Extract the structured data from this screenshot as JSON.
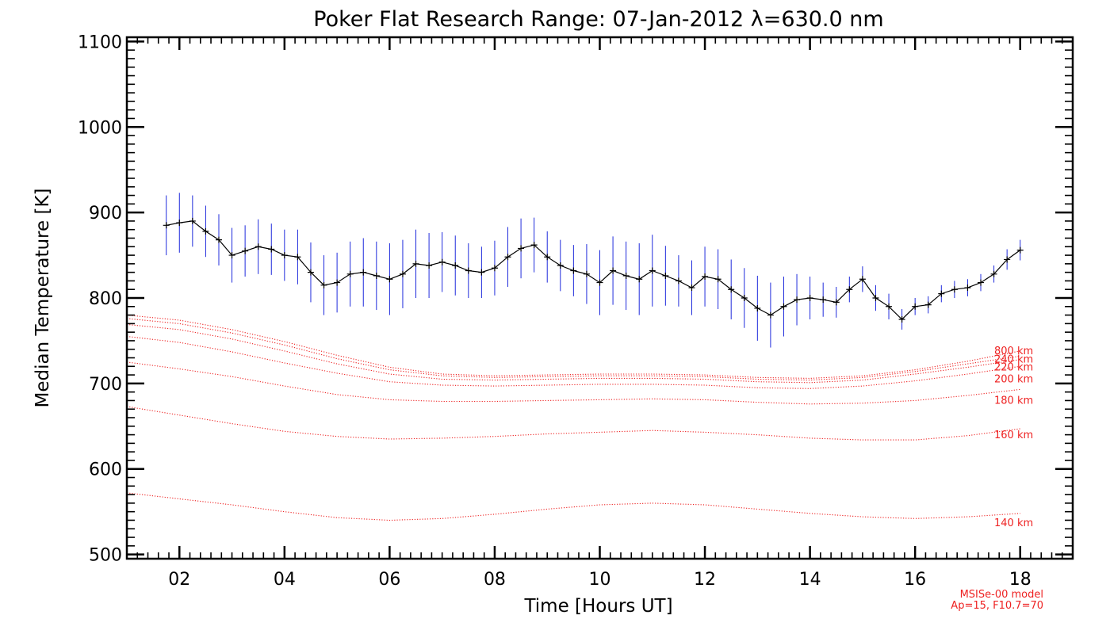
{
  "chart_data": {
    "type": "line",
    "title": "Poker Flat Research Range: 07-Jan-2012 λ=630.0 nm",
    "xlabel": "Time [Hours UT]",
    "ylabel": "Median Temperature [K]",
    "xlim": [
      1.0,
      19.0
    ],
    "ylim": [
      495,
      1105
    ],
    "x_ticks": [
      2,
      4,
      6,
      8,
      10,
      12,
      14,
      16,
      18
    ],
    "x_tick_labels": [
      "02",
      "04",
      "06",
      "08",
      "10",
      "12",
      "14",
      "16",
      "18"
    ],
    "y_ticks": [
      500,
      600,
      700,
      800,
      900,
      1000,
      1100
    ],
    "y_tick_labels": [
      "500",
      "600",
      "700",
      "800",
      "900",
      "1000",
      "1100"
    ],
    "colors": {
      "measurement_line": "#000000",
      "error_bars": "#1f2bdc",
      "model": "#ee2222"
    },
    "measurement": {
      "x": [
        1.75,
        2.0,
        2.25,
        2.5,
        2.75,
        3.0,
        3.25,
        3.5,
        3.75,
        4.0,
        4.25,
        4.5,
        4.75,
        5.0,
        5.25,
        5.5,
        5.75,
        6.0,
        6.25,
        6.5,
        6.75,
        7.0,
        7.25,
        7.5,
        7.75,
        8.0,
        8.25,
        8.5,
        8.75,
        9.0,
        9.25,
        9.5,
        9.75,
        10.0,
        10.25,
        10.5,
        10.75,
        11.0,
        11.25,
        11.5,
        11.75,
        12.0,
        12.25,
        12.5,
        12.75,
        13.0,
        13.25,
        13.5,
        13.75,
        14.0,
        14.25,
        14.5,
        14.75,
        15.0,
        15.25,
        15.5,
        15.75,
        16.0,
        16.25,
        16.5,
        16.75,
        17.0,
        17.25,
        17.5,
        17.75,
        18.0
      ],
      "y": [
        885,
        888,
        890,
        878,
        868,
        850,
        855,
        860,
        857,
        850,
        848,
        830,
        815,
        818,
        828,
        830,
        826,
        822,
        828,
        840,
        838,
        842,
        838,
        832,
        830,
        835,
        848,
        858,
        862,
        848,
        838,
        832,
        828,
        818,
        832,
        826,
        822,
        832,
        826,
        820,
        812,
        825,
        822,
        810,
        800,
        788,
        780,
        790,
        798,
        800,
        798,
        795,
        810,
        822,
        800,
        790,
        775,
        790,
        792,
        805,
        810,
        812,
        818,
        828,
        845,
        856
      ],
      "err": [
        35,
        35,
        30,
        30,
        30,
        32,
        30,
        32,
        30,
        30,
        32,
        35,
        35,
        35,
        38,
        40,
        40,
        42,
        40,
        40,
        38,
        35,
        35,
        32,
        30,
        32,
        35,
        35,
        32,
        30,
        30,
        30,
        35,
        38,
        40,
        40,
        42,
        42,
        35,
        30,
        32,
        35,
        35,
        35,
        35,
        38,
        38,
        35,
        30,
        25,
        20,
        18,
        15,
        15,
        15,
        15,
        12,
        10,
        10,
        10,
        10,
        10,
        10,
        10,
        12,
        12
      ]
    },
    "model_series": [
      {
        "name": "140 km",
        "x": [
          1,
          2,
          3,
          4,
          5,
          6,
          7,
          8,
          9,
          10,
          11,
          12,
          13,
          14,
          15,
          16,
          17,
          18
        ],
        "values": [
          572,
          565,
          558,
          550,
          543,
          540,
          542,
          547,
          553,
          558,
          560,
          558,
          553,
          548,
          544,
          542,
          544,
          548
        ]
      },
      {
        "name": "160 km",
        "x": [
          1,
          2,
          3,
          4,
          5,
          6,
          7,
          8,
          9,
          10,
          11,
          12,
          13,
          14,
          15,
          16,
          17,
          18
        ],
        "values": [
          673,
          663,
          653,
          644,
          638,
          635,
          636,
          638,
          641,
          643,
          645,
          643,
          640,
          636,
          634,
          634,
          639,
          647
        ]
      },
      {
        "name": "180 km",
        "x": [
          1,
          2,
          3,
          4,
          5,
          6,
          7,
          8,
          9,
          10,
          11,
          12,
          13,
          14,
          15,
          16,
          17,
          18
        ],
        "values": [
          725,
          717,
          708,
          697,
          687,
          681,
          679,
          679,
          680,
          681,
          682,
          681,
          678,
          676,
          677,
          680,
          686,
          693
        ]
      },
      {
        "name": "200 km",
        "x": [
          1,
          2,
          3,
          4,
          5,
          6,
          7,
          8,
          9,
          10,
          11,
          12,
          13,
          14,
          15,
          16,
          17,
          18
        ],
        "values": [
          755,
          748,
          737,
          724,
          712,
          702,
          698,
          697,
          698,
          699,
          699,
          698,
          695,
          694,
          697,
          703,
          711,
          720
        ]
      },
      {
        "name": "220 km",
        "x": [
          1,
          2,
          3,
          4,
          5,
          6,
          7,
          8,
          9,
          10,
          11,
          12,
          13,
          14,
          15,
          16,
          17,
          18
        ],
        "values": [
          769,
          763,
          752,
          738,
          723,
          711,
          705,
          704,
          705,
          706,
          706,
          705,
          702,
          701,
          704,
          711,
          719,
          728
        ]
      },
      {
        "name": "240 km",
        "x": [
          1,
          2,
          3,
          4,
          5,
          6,
          7,
          8,
          9,
          10,
          11,
          12,
          13,
          14,
          15,
          16,
          17,
          18
        ],
        "values": [
          776,
          770,
          759,
          745,
          729,
          716,
          709,
          707,
          708,
          709,
          709,
          708,
          705,
          704,
          707,
          714,
          723,
          732
        ]
      },
      {
        "name": "800 km",
        "x": [
          1,
          2,
          3,
          4,
          5,
          6,
          7,
          8,
          9,
          10,
          11,
          12,
          13,
          14,
          15,
          16,
          17,
          18
        ],
        "values": [
          780,
          774,
          763,
          749,
          733,
          719,
          711,
          709,
          710,
          711,
          711,
          710,
          707,
          706,
          709,
          716,
          726,
          738
        ]
      }
    ],
    "model_labels": [
      "800 km",
      "240 km",
      "220 km",
      "200 km",
      "180 km",
      "160 km",
      "140 km"
    ],
    "annotations": [
      "MSISe-00 model",
      "Ap=15, F10.7=70"
    ]
  }
}
